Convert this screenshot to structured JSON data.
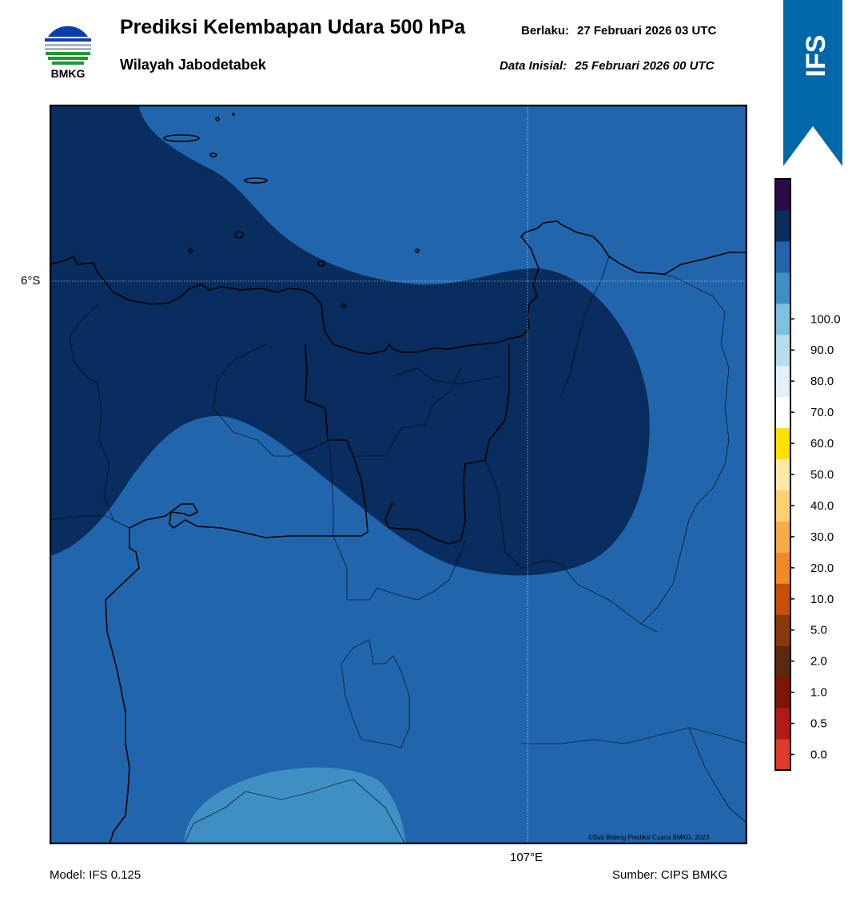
{
  "header": {
    "logo_text": "BMKG",
    "title": "Prediksi Kelembapan Udara 500 hPa",
    "subtitle": "Wilayah Jabodetabek",
    "valid_label": "Berlaku:",
    "valid_value": "27 Februari 2026 03 UTC",
    "init_label": "Data Inisial:",
    "init_value": "25 Februari 2026 00 UTC"
  },
  "badge": {
    "text": "IFS",
    "color": "#0068a8"
  },
  "map": {
    "lat_label": "6°S",
    "lon_label": "107°E",
    "copyright": "©Sub Bidang Prediksi Cuaca BMKG, 2023"
  },
  "colorbar": {
    "colors": [
      "#e03a2a",
      "#b01b18",
      "#7d1407",
      "#5a2a0d",
      "#8a3a0a",
      "#c94e08",
      "#f08a28",
      "#f6ad48",
      "#fbd071",
      "#fde8a8",
      "#fde200",
      "#ffffff",
      "#e2eff9",
      "#b8dcee",
      "#7fbfe0",
      "#3f8fc4",
      "#2166ad",
      "#082d5e",
      "#2a0c4a"
    ],
    "labels": [
      "0.0",
      "0.5",
      "1.0",
      "2.0",
      "5.0",
      "10.0",
      "20.0",
      "30.0",
      "40.0",
      "50.0",
      "60.0",
      "70.0",
      "80.0",
      "90.0",
      "100.0"
    ]
  },
  "legend_fill": {
    "background": "#2166ad",
    "high_humidity": "#082d5e",
    "lower_humidity": "#3f8fc4"
  },
  "footer": {
    "model": "Model: IFS 0.125",
    "source": "Sumber: CIPS BMKG"
  }
}
